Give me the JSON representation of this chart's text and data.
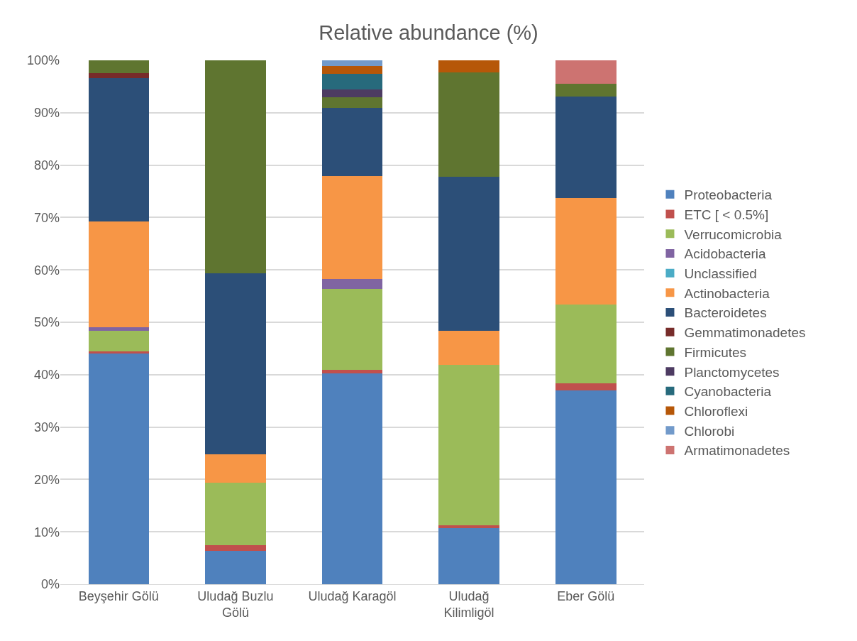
{
  "chart_data": {
    "type": "bar",
    "stacked": true,
    "title": "Relative abundance (%)",
    "categories": [
      "Beyşehir Gölü",
      "Uludağ Buzlu\nGölü",
      "Uludağ Karagöl",
      "Uludağ\nKilimligöl",
      "Eber Gölü"
    ],
    "ylim": [
      0,
      100
    ],
    "yticks": [
      {
        "value": 0,
        "label": "0%"
      },
      {
        "value": 10,
        "label": "10%"
      },
      {
        "value": 20,
        "label": "20%"
      },
      {
        "value": 30,
        "label": "30%"
      },
      {
        "value": 40,
        "label": "40%"
      },
      {
        "value": 50,
        "label": "50%"
      },
      {
        "value": 60,
        "label": "60%"
      },
      {
        "value": 70,
        "label": "70%"
      },
      {
        "value": 80,
        "label": "80%"
      },
      {
        "value": 90,
        "label": "90%"
      },
      {
        "value": 100,
        "label": "100%"
      }
    ],
    "grid": "y",
    "legend": "right",
    "series": [
      {
        "name": "Proteobacteria",
        "color": "#4f81bd",
        "values": [
          44.0,
          6.4,
          40.2,
          10.7,
          37.0
        ]
      },
      {
        "name": "ETC [ < 0.5%]",
        "color": "#c0504d",
        "values": [
          0.5,
          1.1,
          0.7,
          0.5,
          1.3
        ]
      },
      {
        "name": "Verrucomicrobia",
        "color": "#9bbb59",
        "values": [
          3.9,
          11.9,
          15.5,
          30.7,
          15.1
        ]
      },
      {
        "name": "Acidobacteria",
        "color": "#8064a2",
        "values": [
          0.7,
          0,
          1.9,
          0,
          0
        ]
      },
      {
        "name": "Unclassified",
        "color": "#4bacc6",
        "values": [
          0,
          0,
          0,
          0,
          0
        ]
      },
      {
        "name": "Actinobacteria",
        "color": "#f79646",
        "values": [
          20.1,
          5.4,
          19.6,
          6.5,
          20.3
        ]
      },
      {
        "name": "Bacteroidetes",
        "color": "#2c4f78",
        "values": [
          27.4,
          34.5,
          13.0,
          29.4,
          19.4
        ]
      },
      {
        "name": "Gemmatimonadetes",
        "color": "#772c2a",
        "values": [
          1.0,
          0,
          0,
          0,
          0
        ]
      },
      {
        "name": "Firmicutes",
        "color": "#5f7530",
        "values": [
          2.4,
          40.7,
          2.1,
          19.9,
          2.4
        ]
      },
      {
        "name": "Planctomycetes",
        "color": "#4d3b62",
        "values": [
          0,
          0,
          1.4,
          0,
          0
        ]
      },
      {
        "name": "Cyanobacteria",
        "color": "#276a7c",
        "values": [
          0,
          0,
          3.0,
          0,
          0
        ]
      },
      {
        "name": "Chloroflexi",
        "color": "#b65708",
        "values": [
          0,
          0,
          1.5,
          2.3,
          0
        ]
      },
      {
        "name": "Chlorobi",
        "color": "#729aca",
        "values": [
          0,
          0,
          1.1,
          0,
          0
        ]
      },
      {
        "name": "Armatimonadetes",
        "color": "#cd7371",
        "values": [
          0,
          0,
          0,
          0,
          4.5
        ]
      }
    ]
  }
}
